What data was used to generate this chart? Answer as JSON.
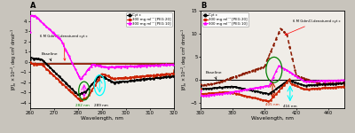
{
  "panel_A": {
    "title": "A",
    "xlabel": "Wavelength, nm",
    "ylabel": "[$\\theta$]$_n$ x 10$^{-2}$, deg cm$^2$ dmol$^{-1}$",
    "xlim": [
      260,
      320
    ],
    "ylim": [
      -4.5,
      5.0
    ],
    "yticks": [
      -4,
      -3,
      -2,
      -1,
      0,
      1,
      2,
      3,
      4
    ],
    "xticks": [
      260,
      270,
      280,
      290,
      300,
      310,
      320
    ],
    "legend_labels": [
      "Cyt c",
      "300 mg ml⁻¹ [PEG 20]",
      "300 mg ml⁻¹ [PEG 10]"
    ],
    "colors": [
      "black",
      "#cc2200",
      "magenta"
    ],
    "denatured_color": "#8b1a00",
    "baseline_color": "#8b1a00",
    "oval1_color": "green",
    "oval2_color": "cyan",
    "arrow1_color": "magenta",
    "arrow2_color": "cyan"
  },
  "panel_B": {
    "title": "B",
    "xlabel": "Wavelength, nm",
    "ylabel": "[$\\theta$]$_n$ x 10$^{-2}$, deg cm$^2$ dmol$^{-1}$",
    "xlim": [
      360,
      450
    ],
    "ylim": [
      -6.0,
      15.0
    ],
    "yticks": [
      -5,
      0,
      5,
      10,
      15
    ],
    "xticks": [
      360,
      380,
      400,
      420,
      440
    ],
    "legend_labels": [
      "Cyt c",
      "300 mg ml⁻¹ [PEG 20]",
      "300 mg ml⁻¹ [PEG 10]"
    ],
    "colors": [
      "black",
      "#cc2200",
      "magenta"
    ],
    "denatured_color": "#8b1a00",
    "oval1_color": "green",
    "arrow1_color": "#cc2200",
    "arrow2_color": "cyan"
  },
  "background_color": "#f0ede8",
  "fig_background": "#c8c4bc"
}
